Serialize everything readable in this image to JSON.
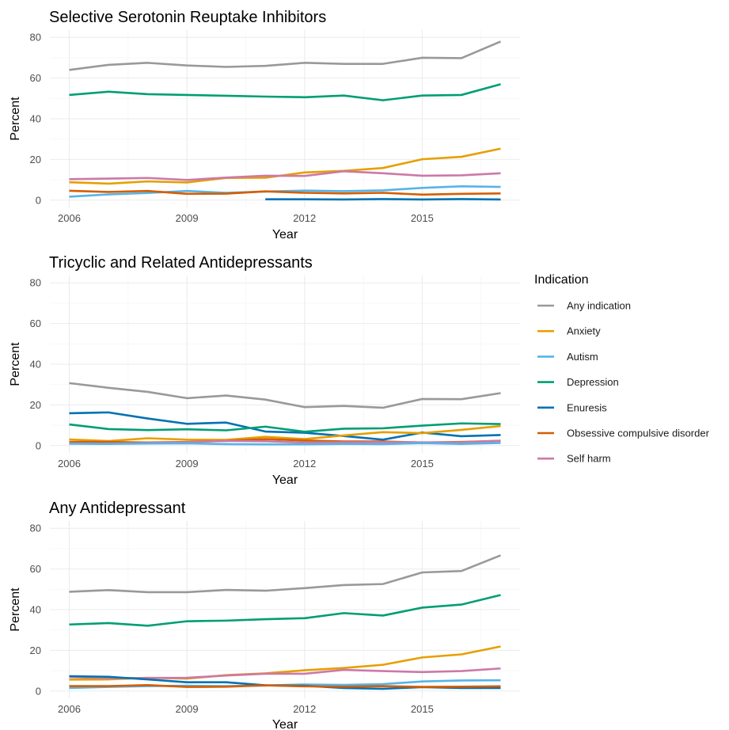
{
  "chart_data": {
    "type": "line",
    "legend": {
      "title": "Indication",
      "placement": "right",
      "entries": [
        {
          "name": "Any indication",
          "color": "#999999"
        },
        {
          "name": "Anxiety",
          "color": "#E69F00"
        },
        {
          "name": "Autism",
          "color": "#56B4E9"
        },
        {
          "name": "Depression",
          "color": "#009E73"
        },
        {
          "name": "Enuresis",
          "color": "#0072B2"
        },
        {
          "name": "Obsessive compulsive disorder",
          "color": "#D55E00"
        },
        {
          "name": "Self harm",
          "color": "#CC79A7"
        }
      ]
    },
    "panels": [
      {
        "title": "Selective Serotonin Reuptake Inhibitors",
        "xlabel": "Year",
        "ylabel": "Percent",
        "xlim": [
          2006,
          2017
        ],
        "ylim": [
          0,
          80
        ],
        "x_ticks": [
          2006,
          2009,
          2012,
          2015
        ],
        "y_ticks": [
          0,
          20,
          40,
          60,
          80
        ],
        "grid": true,
        "series": [
          {
            "name": "Any indication",
            "x": [
              2006,
              2007,
              2008,
              2009,
              2010,
              2011,
              2012,
              2013,
              2014,
              2015,
              2016,
              2017
            ],
            "y": [
              64,
              66.5,
              67.5,
              66.2,
              65.5,
              66,
              67.5,
              67,
              67,
              70,
              69.8,
              78
            ]
          },
          {
            "name": "Depression",
            "x": [
              2006,
              2007,
              2008,
              2009,
              2010,
              2011,
              2012,
              2013,
              2014,
              2015,
              2016,
              2017
            ],
            "y": [
              51.7,
              53.3,
              52.1,
              51.7,
              51.3,
              50.9,
              50.6,
              51.4,
              49.1,
              51.4,
              51.7,
              57
            ]
          },
          {
            "name": "Anxiety",
            "x": [
              2006,
              2007,
              2008,
              2009,
              2010,
              2011,
              2012,
              2013,
              2014,
              2015,
              2016,
              2017
            ],
            "y": [
              8.8,
              8.1,
              9.2,
              8.7,
              10.9,
              11,
              13.6,
              14.4,
              15.8,
              20.1,
              21.3,
              25.3
            ]
          },
          {
            "name": "Self harm",
            "x": [
              2006,
              2007,
              2008,
              2009,
              2010,
              2011,
              2012,
              2013,
              2014,
              2015,
              2016,
              2017
            ],
            "y": [
              10.3,
              10.6,
              10.9,
              9.9,
              11.1,
              12,
              11.9,
              14.2,
              13.2,
              12,
              12.2,
              13.2
            ]
          },
          {
            "name": "Autism",
            "x": [
              2006,
              2007,
              2008,
              2009,
              2010,
              2011,
              2012,
              2013,
              2014,
              2015,
              2016,
              2017
            ],
            "y": [
              1.7,
              2.8,
              3.5,
              4.5,
              3.6,
              4.2,
              4.7,
              4.4,
              4.8,
              6,
              6.8,
              6.5
            ]
          },
          {
            "name": "Obsessive compulsive disorder",
            "x": [
              2006,
              2007,
              2008,
              2009,
              2010,
              2011,
              2012,
              2013,
              2014,
              2015,
              2016,
              2017
            ],
            "y": [
              4.6,
              4,
              4.5,
              3.1,
              3.2,
              4.3,
              3.6,
              3.3,
              3.6,
              2.7,
              3.1,
              3.3
            ]
          },
          {
            "name": "Enuresis",
            "x": [
              2011,
              2012,
              2013,
              2014,
              2015,
              2016,
              2017
            ],
            "y": [
              0.4,
              0.4,
              0.3,
              0.5,
              0.3,
              0.5,
              0.3
            ]
          }
        ]
      },
      {
        "title": "Tricyclic and Related Antidepressants",
        "xlabel": "Year",
        "ylabel": "Percent",
        "xlim": [
          2006,
          2017
        ],
        "ylim": [
          0,
          80
        ],
        "x_ticks": [
          2006,
          2009,
          2012,
          2015
        ],
        "y_ticks": [
          0,
          20,
          40,
          60,
          80
        ],
        "grid": true,
        "series": [
          {
            "name": "Any indication",
            "x": [
              2006,
              2007,
              2008,
              2009,
              2010,
              2011,
              2012,
              2013,
              2014,
              2015,
              2016,
              2017
            ],
            "y": [
              30.7,
              28.4,
              26.4,
              23.3,
              24.6,
              22.6,
              18.9,
              19.5,
              18.6,
              22.9,
              22.8,
              25.8
            ]
          },
          {
            "name": "Enuresis",
            "x": [
              2006,
              2007,
              2008,
              2009,
              2010,
              2011,
              2012,
              2013,
              2014,
              2015,
              2016,
              2017
            ],
            "y": [
              15.9,
              16.3,
              13.3,
              10.7,
              11.3,
              6.9,
              6.3,
              4.7,
              2.9,
              6.4,
              4.6,
              5.2
            ]
          },
          {
            "name": "Depression",
            "x": [
              2006,
              2007,
              2008,
              2009,
              2010,
              2011,
              2012,
              2013,
              2014,
              2015,
              2016,
              2017
            ],
            "y": [
              10.4,
              8.1,
              7.6,
              8,
              7.5,
              9.3,
              6.8,
              8.3,
              8.5,
              9.8,
              10.9,
              10.6
            ]
          },
          {
            "name": "Anxiety",
            "x": [
              2006,
              2007,
              2008,
              2009,
              2010,
              2011,
              2012,
              2013,
              2014,
              2015,
              2016,
              2017
            ],
            "y": [
              3,
              2.2,
              3.6,
              2.9,
              2.8,
              4.3,
              3.2,
              5,
              6.6,
              6.1,
              7.7,
              9.6
            ]
          },
          {
            "name": "Obsessive compulsive disorder",
            "x": [
              2006,
              2007,
              2008,
              2009,
              2010,
              2011,
              2012,
              2013,
              2014,
              2015,
              2016,
              2017
            ],
            "y": [
              1.8,
              1.8,
              1.5,
              1.8,
              2.3,
              3.2,
              2.5,
              2,
              2,
              1.5,
              1.8,
              2.3
            ]
          },
          {
            "name": "Self harm",
            "x": [
              2006,
              2007,
              2008,
              2009,
              2010,
              2011,
              2012,
              2013,
              2014,
              2015,
              2016,
              2017
            ],
            "y": [
              1.1,
              1,
              1.2,
              1.7,
              2.3,
              2.1,
              1.5,
              1.6,
              1.7,
              1.6,
              1.6,
              2.4
            ]
          },
          {
            "name": "Autism",
            "x": [
              2006,
              2007,
              2008,
              2009,
              2010,
              2011,
              2012,
              2013,
              2014,
              2015,
              2016,
              2017
            ],
            "y": [
              0.9,
              0.8,
              1,
              1.1,
              0.7,
              0.6,
              0.6,
              0.8,
              0.7,
              1.2,
              0.8,
              1.3
            ]
          }
        ]
      },
      {
        "title": "Any Antidepressant",
        "xlabel": "Year",
        "ylabel": "Percent",
        "xlim": [
          2006,
          2017
        ],
        "ylim": [
          0,
          80
        ],
        "x_ticks": [
          2006,
          2009,
          2012,
          2015
        ],
        "y_ticks": [
          0,
          20,
          40,
          60,
          80
        ],
        "grid": true,
        "series": [
          {
            "name": "Any indication",
            "x": [
              2006,
              2007,
              2008,
              2009,
              2010,
              2011,
              2012,
              2013,
              2014,
              2015,
              2016,
              2017
            ],
            "y": [
              48.8,
              49.6,
              48.6,
              48.6,
              49.7,
              49.3,
              50.6,
              52.1,
              52.6,
              58.3,
              59,
              66.7
            ]
          },
          {
            "name": "Depression",
            "x": [
              2006,
              2007,
              2008,
              2009,
              2010,
              2011,
              2012,
              2013,
              2014,
              2015,
              2016,
              2017
            ],
            "y": [
              32.7,
              33.4,
              32.1,
              34.3,
              34.6,
              35.3,
              35.8,
              38.3,
              37.1,
              41,
              42.5,
              47.2
            ]
          },
          {
            "name": "Anxiety",
            "x": [
              2006,
              2007,
              2008,
              2009,
              2010,
              2011,
              2012,
              2013,
              2014,
              2015,
              2016,
              2017
            ],
            "y": [
              5.6,
              5.7,
              6.5,
              6.1,
              7.8,
              8.7,
              10.2,
              11.3,
              12.9,
              16.5,
              18,
              21.9
            ]
          },
          {
            "name": "Self harm",
            "x": [
              2006,
              2007,
              2008,
              2009,
              2010,
              2011,
              2012,
              2013,
              2014,
              2015,
              2016,
              2017
            ],
            "y": [
              6.9,
              6.3,
              6.4,
              6.5,
              7.6,
              8.5,
              8.5,
              10.4,
              9.8,
              9.3,
              9.8,
              11.1
            ]
          },
          {
            "name": "Autism",
            "x": [
              2006,
              2007,
              2008,
              2009,
              2010,
              2011,
              2012,
              2013,
              2014,
              2015,
              2016,
              2017
            ],
            "y": [
              1.5,
              2,
              2.4,
              2.6,
              2.4,
              2.7,
              3.2,
              3,
              3.4,
              4.7,
              5.2,
              5.3
            ]
          },
          {
            "name": "Enuresis",
            "x": [
              2006,
              2007,
              2008,
              2009,
              2010,
              2011,
              2012,
              2013,
              2014,
              2015,
              2016,
              2017
            ],
            "y": [
              7.3,
              7,
              5.7,
              4.3,
              4.3,
              2.8,
              2.6,
              1.5,
              1.1,
              1.9,
              1.5,
              1.5
            ]
          },
          {
            "name": "Obsessive compulsive disorder",
            "x": [
              2006,
              2007,
              2008,
              2009,
              2010,
              2011,
              2012,
              2013,
              2014,
              2015,
              2016,
              2017
            ],
            "y": [
              2.4,
              2.4,
              2.9,
              2,
              2.1,
              2.8,
              2.3,
              2.1,
              2.4,
              2,
              2.1,
              2.3
            ]
          }
        ]
      }
    ]
  }
}
